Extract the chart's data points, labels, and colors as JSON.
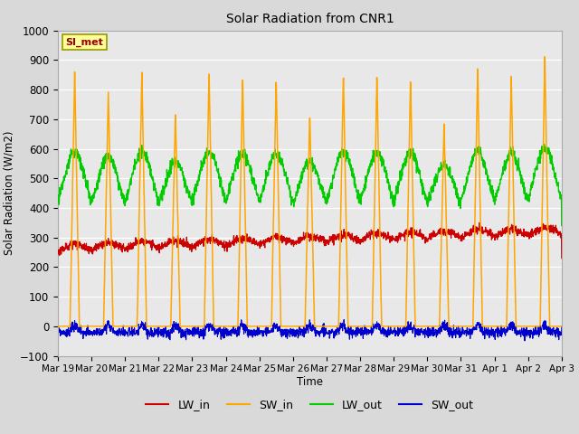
{
  "title": "Solar Radiation from CNR1",
  "ylabel": "Solar Radiation (W/m2)",
  "xlabel": "Time",
  "annotation": "SI_met",
  "ylim": [
    -100,
    1000
  ],
  "yticks": [
    -100,
    0,
    100,
    200,
    300,
    400,
    500,
    600,
    700,
    800,
    900,
    1000
  ],
  "xtick_labels": [
    "Mar 19",
    "Mar 20",
    "Mar 21",
    "Mar 22",
    "Mar 23",
    "Mar 24",
    "Mar 25",
    "Mar 26",
    "Mar 27",
    "Mar 28",
    "Mar 29",
    "Mar 30",
    "Mar 31",
    "Apr 1",
    "Apr 2",
    "Apr 3"
  ],
  "background_color": "#d9d9d9",
  "plot_bg_color": "#e8e8e8",
  "colors": {
    "LW_in": "#cc0000",
    "SW_in": "#ffa500",
    "LW_out": "#00cc00",
    "SW_out": "#0000cc"
  },
  "num_days": 15,
  "pts_per_day": 144,
  "SW_in_peaks": [
    860,
    800,
    860,
    730,
    860,
    845,
    840,
    730,
    860,
    850,
    845,
    690,
    875,
    845,
    910
  ],
  "annotation_facecolor": "#ffff99",
  "annotation_edgecolor": "#999900",
  "annotation_textcolor": "#990000"
}
